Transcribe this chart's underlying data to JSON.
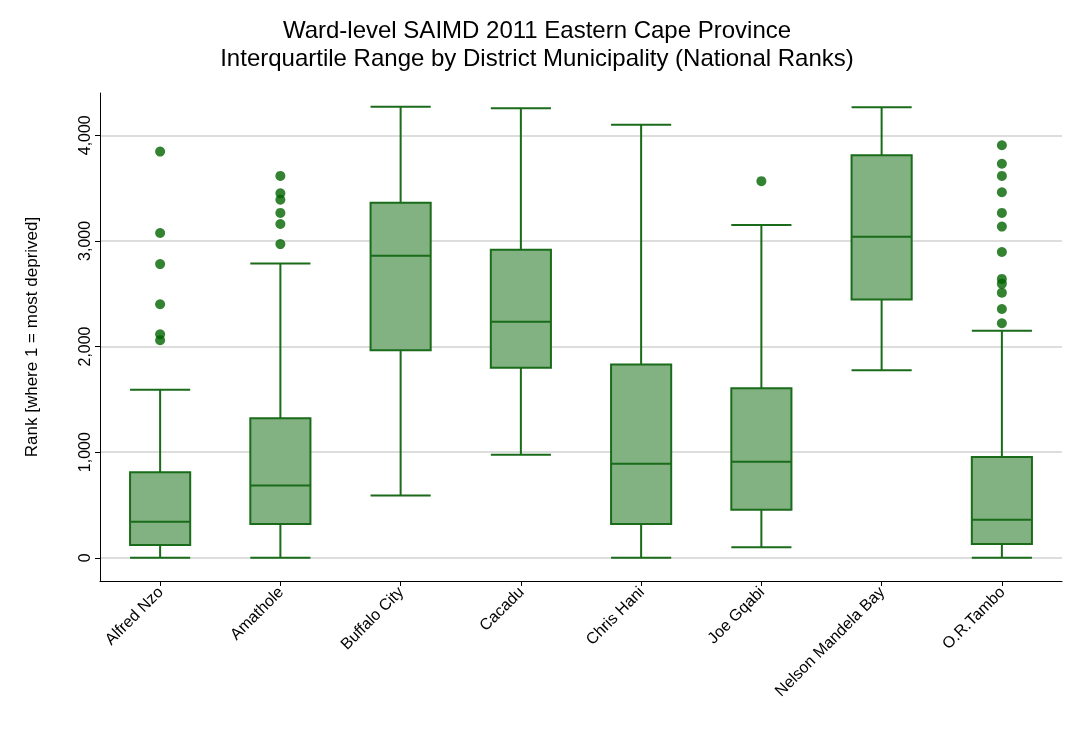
{
  "chart_data": {
    "type": "box",
    "title": "Ward-level SAIMD 2011 Eastern Cape Province",
    "subtitle": "Interquartile Range by District Municipality (National Ranks)",
    "ylabel": "Rank [where 1 = most deprived]",
    "categories": [
      "Alfred Nzo",
      "Amathole",
      "Buffalo City",
      "Cacadu",
      "Chris Hani",
      "Joe Gqabi",
      "Nelson Mandela Bay",
      "O.R.Tambo"
    ],
    "color": "#82b282",
    "boxes": [
      {
        "low": 0,
        "q1": 120,
        "median": 340,
        "q3": 810,
        "high": 1590,
        "outliers": [
          3845,
          3075,
          2780,
          2400,
          2115,
          2060
        ]
      },
      {
        "low": 0,
        "q1": 320,
        "median": 685,
        "q3": 1320,
        "high": 2785,
        "outliers": [
          3615,
          3450,
          3390,
          3265,
          3160,
          2970
        ]
      },
      {
        "low": 590,
        "q1": 1965,
        "median": 2860,
        "q3": 3360,
        "high": 4270
      },
      {
        "low": 975,
        "q1": 1800,
        "median": 2235,
        "q3": 2915,
        "high": 4255
      },
      {
        "low": 0,
        "q1": 320,
        "median": 890,
        "q3": 1830,
        "high": 4100
      },
      {
        "low": 100,
        "q1": 455,
        "median": 910,
        "q3": 1605,
        "high": 3150,
        "outliers": [
          3565
        ]
      },
      {
        "low": 1775,
        "q1": 2445,
        "median": 3040,
        "q3": 3810,
        "high": 4265
      },
      {
        "low": 0,
        "q1": 130,
        "median": 360,
        "q3": 955,
        "high": 2150,
        "outliers": [
          3905,
          3730,
          3615,
          3460,
          3265,
          3135,
          2895,
          2640,
          2595,
          2510,
          2355,
          2220
        ]
      }
    ],
    "ylim": [
      -220,
      4400
    ],
    "yticks": [
      0,
      {
        "value": 1000,
        "label": "1,000"
      },
      {
        "value": 2000,
        "label": "2,000"
      },
      {
        "value": 3000,
        "label": "3,000"
      },
      {
        "value": 4000,
        "label": "4,000"
      }
    ],
    "grid": "y"
  }
}
